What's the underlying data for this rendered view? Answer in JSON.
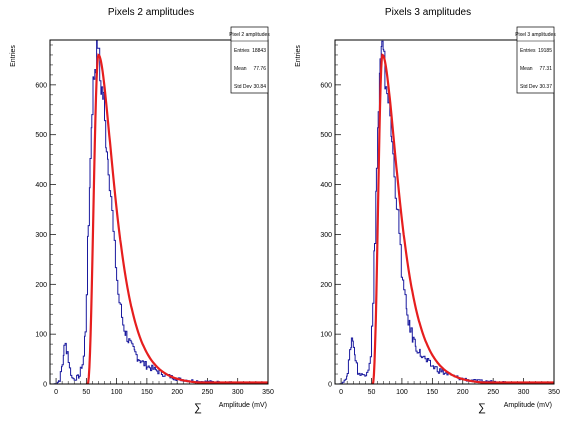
{
  "chart_data": [
    {
      "type": "histogram",
      "title": "Pixels 2 amplitudes",
      "xlabel": "Amplitude (mV)",
      "xlabel_symbol": "∑",
      "ylabel": "Entries",
      "xlim": [
        -10,
        350
      ],
      "ylim": [
        0,
        690
      ],
      "xticks": [
        "0",
        "50",
        "100",
        "150",
        "200",
        "250",
        "300",
        "350"
      ],
      "yticks": [
        "0",
        "100",
        "200",
        "300",
        "400",
        "500",
        "600"
      ],
      "stats_box": {
        "name": "Pixel 2 amplitudes",
        "rows": [
          {
            "label": "Entries",
            "value": "18843"
          },
          {
            "label": "Mean",
            "value": "77.76"
          },
          {
            "label": "Std Dev",
            "value": "30.84"
          }
        ]
      },
      "histogram": {
        "color": "#1a1a9e",
        "points": [
          [
            -5,
            0
          ],
          [
            0,
            1
          ],
          [
            5,
            8
          ],
          [
            10,
            40
          ],
          [
            13,
            72
          ],
          [
            15,
            78
          ],
          [
            18,
            65
          ],
          [
            22,
            30
          ],
          [
            26,
            12
          ],
          [
            30,
            10
          ],
          [
            35,
            14
          ],
          [
            38,
            16
          ],
          [
            40,
            28
          ],
          [
            43,
            40
          ],
          [
            45,
            55
          ],
          [
            48,
            110
          ],
          [
            50,
            190
          ],
          [
            53,
            320
          ],
          [
            56,
            450
          ],
          [
            59,
            560
          ],
          [
            62,
            620
          ],
          [
            65,
            650
          ],
          [
            68,
            690
          ],
          [
            70,
            650
          ],
          [
            72,
            610
          ],
          [
            75,
            590
          ],
          [
            78,
            570
          ],
          [
            80,
            520
          ],
          [
            83,
            480
          ],
          [
            86,
            440
          ],
          [
            90,
            380
          ],
          [
            94,
            300
          ],
          [
            98,
            240
          ],
          [
            102,
            180
          ],
          [
            106,
            150
          ],
          [
            110,
            120
          ],
          [
            115,
            100
          ],
          [
            120,
            85
          ],
          [
            125,
            72
          ],
          [
            130,
            62
          ],
          [
            135,
            52
          ],
          [
            140,
            46
          ],
          [
            145,
            40
          ],
          [
            150,
            36
          ],
          [
            160,
            30
          ],
          [
            170,
            24
          ],
          [
            180,
            18
          ],
          [
            190,
            14
          ],
          [
            200,
            10
          ],
          [
            220,
            7
          ],
          [
            240,
            5
          ],
          [
            260,
            4
          ],
          [
            280,
            3
          ],
          [
            300,
            2
          ],
          [
            320,
            1
          ],
          [
            350,
            1
          ]
        ]
      },
      "fit": {
        "color": "#e61e1e",
        "peak_x": 70,
        "peak_y": 660,
        "start_x": 52,
        "end_x": 350,
        "end_y": 3
      }
    },
    {
      "type": "histogram",
      "title": "Pixels 3 amplitudes",
      "xlabel": "Amplitude (mV)",
      "xlabel_symbol": "∑",
      "ylabel": "Entries",
      "xlim": [
        -10,
        350
      ],
      "ylim": [
        0,
        690
      ],
      "xticks": [
        "0",
        "50",
        "100",
        "150",
        "200",
        "250",
        "300",
        "350"
      ],
      "yticks": [
        "0",
        "100",
        "200",
        "300",
        "400",
        "500",
        "600"
      ],
      "stats_box": {
        "name": "Pixel 3 amplitudes",
        "rows": [
          {
            "label": "Entries",
            "value": "19185"
          },
          {
            "label": "Mean",
            "value": "77.31"
          },
          {
            "label": "Std Dev",
            "value": "30.37"
          }
        ]
      },
      "histogram": {
        "color": "#1a1a9e",
        "points": [
          [
            -5,
            0
          ],
          [
            0,
            1
          ],
          [
            5,
            5
          ],
          [
            10,
            25
          ],
          [
            14,
            60
          ],
          [
            17,
            92
          ],
          [
            20,
            80
          ],
          [
            23,
            50
          ],
          [
            27,
            25
          ],
          [
            31,
            18
          ],
          [
            35,
            18
          ],
          [
            40,
            22
          ],
          [
            44,
            32
          ],
          [
            48,
            60
          ],
          [
            52,
            160
          ],
          [
            55,
            300
          ],
          [
            58,
            430
          ],
          [
            61,
            550
          ],
          [
            64,
            640
          ],
          [
            67,
            670
          ],
          [
            70,
            640
          ],
          [
            73,
            600
          ],
          [
            77,
            580
          ],
          [
            80,
            540
          ],
          [
            83,
            480
          ],
          [
            87,
            430
          ],
          [
            91,
            360
          ],
          [
            95,
            300
          ],
          [
            99,
            230
          ],
          [
            103,
            180
          ],
          [
            108,
            140
          ],
          [
            113,
            110
          ],
          [
            118,
            90
          ],
          [
            123,
            75
          ],
          [
            130,
            60
          ],
          [
            138,
            48
          ],
          [
            145,
            40
          ],
          [
            152,
            34
          ],
          [
            160,
            28
          ],
          [
            170,
            22
          ],
          [
            180,
            17
          ],
          [
            190,
            13
          ],
          [
            200,
            10
          ],
          [
            220,
            6
          ],
          [
            240,
            5
          ],
          [
            260,
            4
          ],
          [
            280,
            3
          ],
          [
            300,
            2
          ],
          [
            320,
            1
          ],
          [
            350,
            1
          ]
        ]
      },
      "fit": {
        "color": "#e61e1e",
        "peak_x": 68,
        "peak_y": 660,
        "start_x": 52,
        "end_x": 350,
        "end_y": 3
      }
    }
  ]
}
